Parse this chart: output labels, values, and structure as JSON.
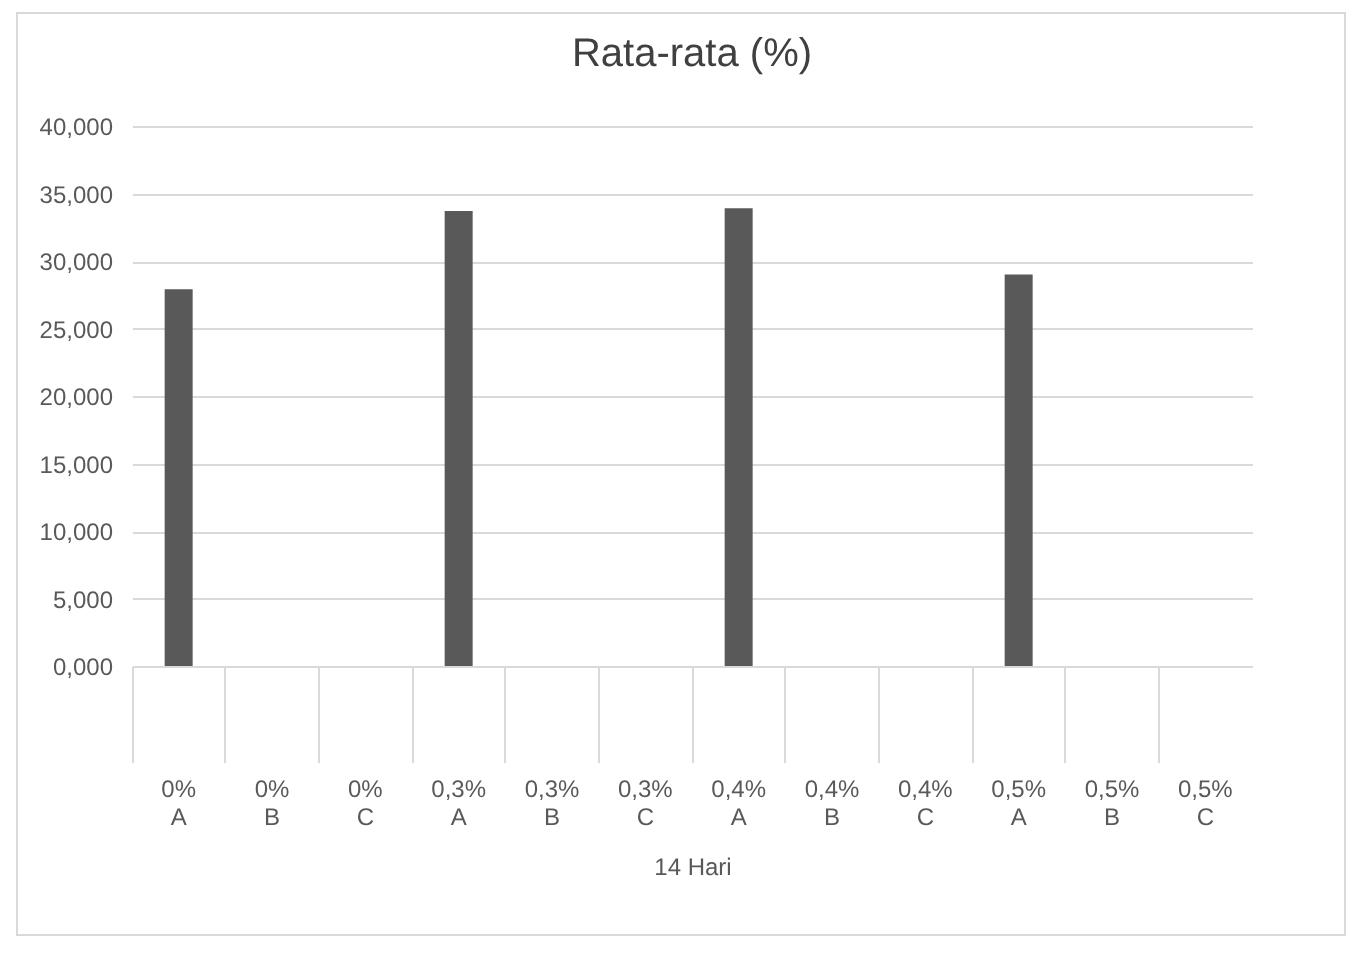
{
  "chart_data": {
    "type": "bar",
    "title": "Rata-rata (%)",
    "xlabel": "14 Hari",
    "categories": [
      "0% A",
      "0% B",
      "0% C",
      "0,3% A",
      "0,3% B",
      "0,3% C",
      "0,4% A",
      "0,4% B",
      "0,4% C",
      "0,5% A",
      "0,5% B",
      "0,5% C"
    ],
    "values": [
      27.9,
      null,
      null,
      33.7,
      null,
      null,
      33.9,
      null,
      null,
      29.0,
      null,
      null
    ],
    "color": "#595959",
    "ylim": [
      0,
      40
    ],
    "yticks": [
      {
        "value": 0,
        "label": "0,000"
      },
      {
        "value": 5,
        "label": "5,000"
      },
      {
        "value": 10,
        "label": "10,000"
      },
      {
        "value": 15,
        "label": "15,000"
      },
      {
        "value": 20,
        "label": "20,000"
      },
      {
        "value": 25,
        "label": "25,000"
      },
      {
        "value": 30,
        "label": "30,000"
      },
      {
        "value": 35,
        "label": "35,000"
      },
      {
        "value": 40,
        "label": "40,000"
      }
    ],
    "grid": "y"
  }
}
